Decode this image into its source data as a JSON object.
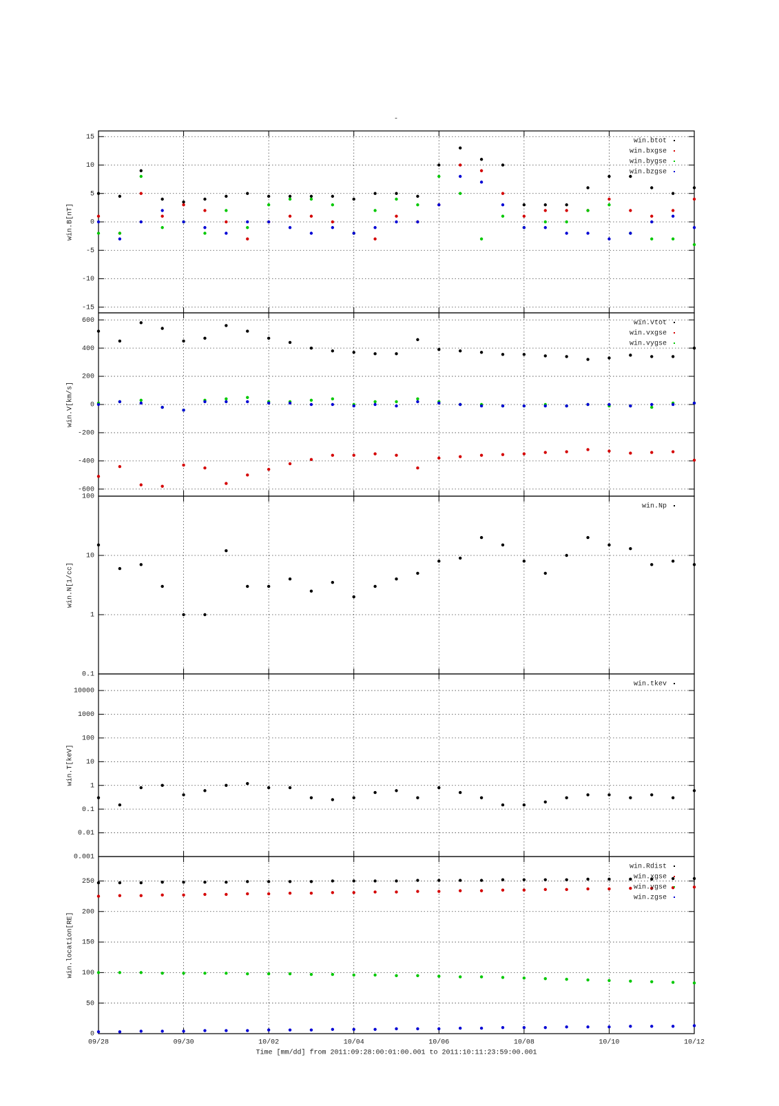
{
  "chart_data": [
    {
      "type": "scatter",
      "title": "-",
      "ylabel": "win.B[nT]",
      "grid": true,
      "x": [
        0,
        0.5,
        1,
        1.5,
        2,
        2.5,
        3,
        3.5,
        4,
        4.5,
        5,
        5.5,
        6,
        6.5,
        7,
        7.5,
        8,
        8.5,
        9,
        9.5,
        10,
        10.5,
        11,
        11.5,
        12,
        12.5,
        13,
        13.5,
        14
      ],
      "ylim": [
        -16,
        16
      ],
      "yticks": [
        -15,
        -10,
        -5,
        0,
        5,
        10,
        15
      ],
      "series": [
        {
          "name": "win.btot",
          "color": "#000000",
          "values": [
            5,
            4.5,
            9,
            4,
            3.5,
            4,
            4.5,
            5,
            4.5,
            4.5,
            4.5,
            4.5,
            4,
            5,
            5,
            4.5,
            10,
            13,
            11,
            10,
            3,
            3,
            3,
            6,
            8,
            8,
            6,
            5,
            6
          ]
        },
        {
          "name": "win.bxgse",
          "color": "#d40000",
          "values": [
            1,
            -2,
            5,
            1,
            3,
            2,
            0,
            -3,
            0,
            1,
            1,
            0,
            -2,
            -3,
            1,
            0,
            3,
            10,
            9,
            5,
            1,
            2,
            2,
            2,
            4,
            2,
            1,
            2,
            4
          ]
        },
        {
          "name": "win.bygse",
          "color": "#00c800",
          "values": [
            -2,
            -2,
            8,
            -1,
            0,
            -2,
            2,
            -1,
            3,
            4,
            4,
            3,
            -2,
            2,
            4,
            3,
            8,
            5,
            -3,
            1,
            -1,
            0,
            0,
            2,
            3,
            -2,
            -3,
            -3,
            -4
          ]
        },
        {
          "name": "win.bzgse",
          "color": "#0000d4",
          "values": [
            0,
            -3,
            0,
            2,
            0,
            -1,
            -2,
            0,
            0,
            -1,
            -2,
            -1,
            -2,
            -1,
            0,
            0,
            3,
            8,
            7,
            3,
            -1,
            -1,
            -2,
            -2,
            -3,
            -2,
            0,
            1,
            -1
          ]
        }
      ]
    },
    {
      "type": "scatter",
      "ylabel": "win.V[km/s]",
      "grid": true,
      "x": [
        0,
        0.5,
        1,
        1.5,
        2,
        2.5,
        3,
        3.5,
        4,
        4.5,
        5,
        5.5,
        6,
        6.5,
        7,
        7.5,
        8,
        8.5,
        9,
        9.5,
        10,
        10.5,
        11,
        11.5,
        12,
        12.5,
        13,
        13.5,
        14
      ],
      "ylim": [
        -650,
        650
      ],
      "yticks": [
        -600,
        -400,
        -200,
        0,
        200,
        400,
        600
      ],
      "series": [
        {
          "name": "win.vtot",
          "color": "#000000",
          "values": [
            520,
            450,
            580,
            540,
            450,
            470,
            560,
            520,
            470,
            440,
            400,
            380,
            370,
            360,
            360,
            460,
            390,
            380,
            370,
            355,
            355,
            345,
            340,
            320,
            330,
            350,
            340,
            340,
            400
          ]
        },
        {
          "name": "win.vxgse",
          "color": "#d40000",
          "values": [
            -510,
            -440,
            -570,
            -580,
            -430,
            -450,
            -560,
            -500,
            -460,
            -420,
            -390,
            -360,
            -360,
            -350,
            -360,
            -450,
            -380,
            -370,
            -360,
            -355,
            -350,
            -340,
            -335,
            -320,
            -330,
            -345,
            -340,
            -335,
            -395
          ]
        },
        {
          "name": "win.vygse",
          "color": "#00c800",
          "values": [
            10,
            20,
            30,
            -20,
            -40,
            30,
            40,
            50,
            20,
            20,
            30,
            40,
            0,
            20,
            20,
            40,
            20,
            0,
            0,
            -10,
            -10,
            0,
            -10,
            0,
            -10,
            -10,
            -20,
            10,
            10
          ]
        },
        {
          "color": "#0000d4",
          "values": [
            0,
            20,
            10,
            -20,
            -40,
            20,
            20,
            20,
            10,
            10,
            0,
            0,
            -10,
            0,
            -10,
            20,
            10,
            0,
            -10,
            -10,
            -10,
            -10,
            -10,
            0,
            0,
            -10,
            0,
            0,
            10
          ]
        }
      ]
    },
    {
      "type": "scatter",
      "ylabel": "win.N[1/cc]",
      "grid": true,
      "ylog": true,
      "x": [
        0,
        0.5,
        1,
        1.5,
        2,
        2.5,
        3,
        3.5,
        4,
        4.5,
        5,
        5.5,
        6,
        6.5,
        7,
        7.5,
        8,
        8.5,
        9,
        9.5,
        10,
        10.5,
        11,
        11.5,
        12,
        12.5,
        13,
        13.5,
        14
      ],
      "ylim": [
        0.1,
        100
      ],
      "yticks": [
        0.1,
        1,
        10,
        100
      ],
      "series": [
        {
          "name": "win.Np",
          "color": "#000000",
          "values": [
            15,
            6,
            7,
            3,
            1,
            1,
            12,
            3,
            3,
            4,
            2.5,
            3.5,
            2,
            3,
            4,
            5,
            8,
            9,
            20,
            15,
            8,
            5,
            10,
            20,
            15,
            13,
            7,
            8,
            7
          ]
        }
      ]
    },
    {
      "type": "scatter",
      "ylabel": "win.T[keV]",
      "grid": true,
      "ylog": true,
      "x": [
        0,
        0.5,
        1,
        1.5,
        2,
        2.5,
        3,
        3.5,
        4,
        4.5,
        5,
        5.5,
        6,
        6.5,
        7,
        7.5,
        8,
        8.5,
        9,
        9.5,
        10,
        10.5,
        11,
        11.5,
        12,
        12.5,
        13,
        13.5,
        14
      ],
      "ylim": [
        0.001,
        50000
      ],
      "yticks": [
        0.001,
        0.01,
        0.1,
        1,
        10,
        100,
        1000,
        10000
      ],
      "series": [
        {
          "name": "win.tkev",
          "color": "#000000",
          "values": [
            0.3,
            0.15,
            0.8,
            1,
            0.4,
            0.6,
            1,
            1.2,
            0.8,
            0.8,
            0.3,
            0.25,
            0.3,
            0.5,
            0.6,
            0.3,
            0.8,
            0.5,
            0.3,
            0.15,
            0.15,
            0.2,
            0.3,
            0.4,
            0.4,
            0.3,
            0.4,
            0.3,
            0.6
          ]
        }
      ]
    },
    {
      "type": "scatter",
      "ylabel": "win.location[RE]",
      "grid": true,
      "xlabel": "Time [mm/dd]  from 2011:09:28:00:01:00.001  to  2011:10:11:23:59:00.001",
      "x": [
        0,
        0.5,
        1,
        1.5,
        2,
        2.5,
        3,
        3.5,
        4,
        4.5,
        5,
        5.5,
        6,
        6.5,
        7,
        7.5,
        8,
        8.5,
        9,
        9.5,
        10,
        10.5,
        11,
        11.5,
        12,
        12.5,
        13,
        13.5,
        14
      ],
      "xlim": [
        0,
        14
      ],
      "xticks": [
        {
          "value": 0,
          "label": "09/28"
        },
        {
          "value": 2,
          "label": "09/30"
        },
        {
          "value": 4,
          "label": "10/02"
        },
        {
          "value": 6,
          "label": "10/04"
        },
        {
          "value": 8,
          "label": "10/06"
        },
        {
          "value": 10,
          "label": "10/08"
        },
        {
          "value": 12,
          "label": "10/10"
        },
        {
          "value": 14,
          "label": "10/12"
        }
      ],
      "ylim": [
        0,
        290
      ],
      "yticks": [
        0,
        50,
        100,
        150,
        200,
        250
      ],
      "series": [
        {
          "name": "win.Rdist",
          "color": "#000000",
          "values": [
            247,
            247,
            247,
            248,
            248,
            248,
            248,
            249,
            249,
            249,
            249,
            250,
            250,
            250,
            250,
            251,
            251,
            251,
            251,
            252,
            252,
            252,
            252,
            253,
            253,
            253,
            253,
            254,
            254
          ]
        },
        {
          "name": "win.xgse",
          "color": "#d40000",
          "values": [
            225,
            226,
            226,
            227,
            227,
            228,
            228,
            229,
            229,
            230,
            230,
            231,
            231,
            232,
            232,
            233,
            233,
            234,
            234,
            235,
            235,
            236,
            236,
            237,
            237,
            238,
            238,
            239,
            240
          ]
        },
        {
          "name": "win.ygse",
          "color": "#00c800",
          "values": [
            100,
            100,
            100,
            99,
            99,
            99,
            99,
            98,
            98,
            98,
            97,
            97,
            96,
            96,
            95,
            95,
            94,
            93,
            93,
            92,
            91,
            90,
            89,
            88,
            87,
            86,
            85,
            84,
            83
          ]
        },
        {
          "name": "win.zgse",
          "color": "#0000d4",
          "values": [
            3,
            3,
            4,
            4,
            4,
            5,
            5,
            5,
            6,
            6,
            6,
            7,
            7,
            7,
            8,
            8,
            8,
            9,
            9,
            10,
            10,
            10,
            11,
            11,
            11,
            12,
            12,
            12,
            13
          ]
        }
      ]
    }
  ]
}
